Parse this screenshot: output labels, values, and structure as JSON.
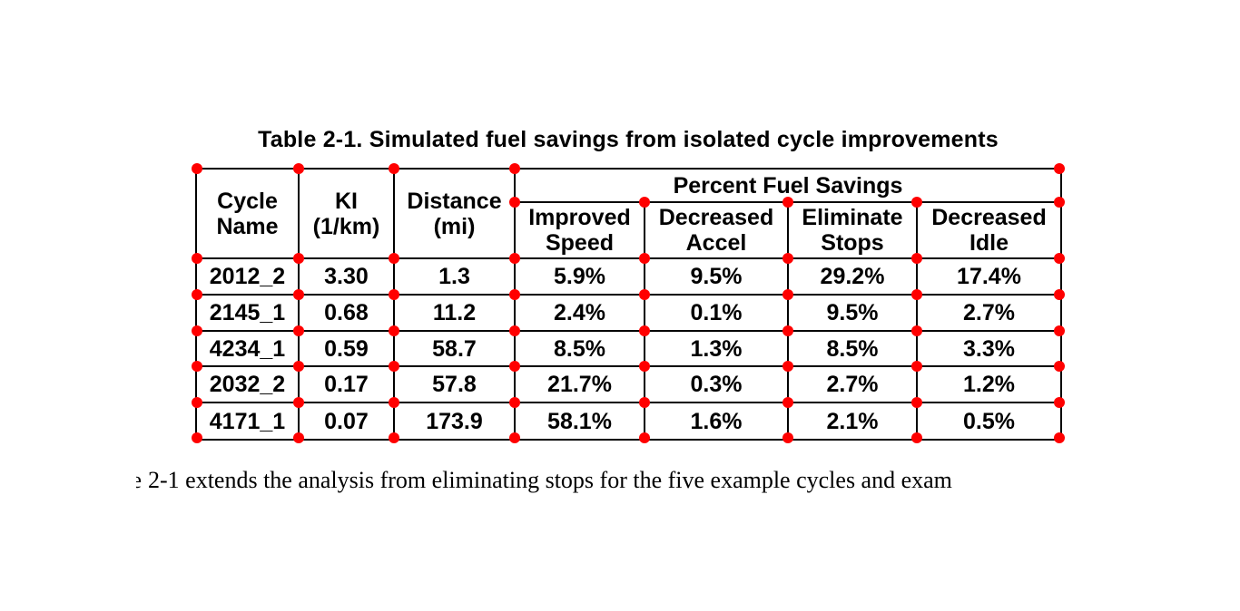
{
  "document": {
    "table_title": "Table 2-1. Simulated fuel savings from isolated cycle improvements",
    "body_fragment": "e",
    "body_text": "2-1 extends the analysis from eliminating stops for the five example cycles and exam"
  },
  "table": {
    "columns": {
      "cycle_name": "Cycle\nName",
      "ki": "KI\n(1/km)",
      "distance": "Distance\n(mi)",
      "group_header": "Percent Fuel Savings",
      "sub_headers": [
        "Improved\nSpeed",
        "Decreased\nAccel",
        "Eliminate\nStops",
        "Decreased\nIdle"
      ]
    },
    "rows": [
      [
        "2012_2",
        "3.30",
        "1.3",
        "5.9%",
        "9.5%",
        "29.2%",
        "17.4%"
      ],
      [
        "2145_1",
        "0.68",
        "11.2",
        "2.4%",
        "0.1%",
        "9.5%",
        "2.7%"
      ],
      [
        "4234_1",
        "0.59",
        "58.7",
        "8.5%",
        "1.3%",
        "8.5%",
        "3.3%"
      ],
      [
        "2032_2",
        "0.17",
        "57.8",
        "21.7%",
        "0.3%",
        "2.7%",
        "1.2%"
      ],
      [
        "4171_1",
        "0.07",
        "173.9",
        "58.1%",
        "1.6%",
        "2.1%",
        "0.5%"
      ]
    ]
  },
  "colors": {
    "marker_dot": "#ff0000",
    "table_border": "#000000",
    "text": "#000000",
    "background": "#ffffff"
  }
}
